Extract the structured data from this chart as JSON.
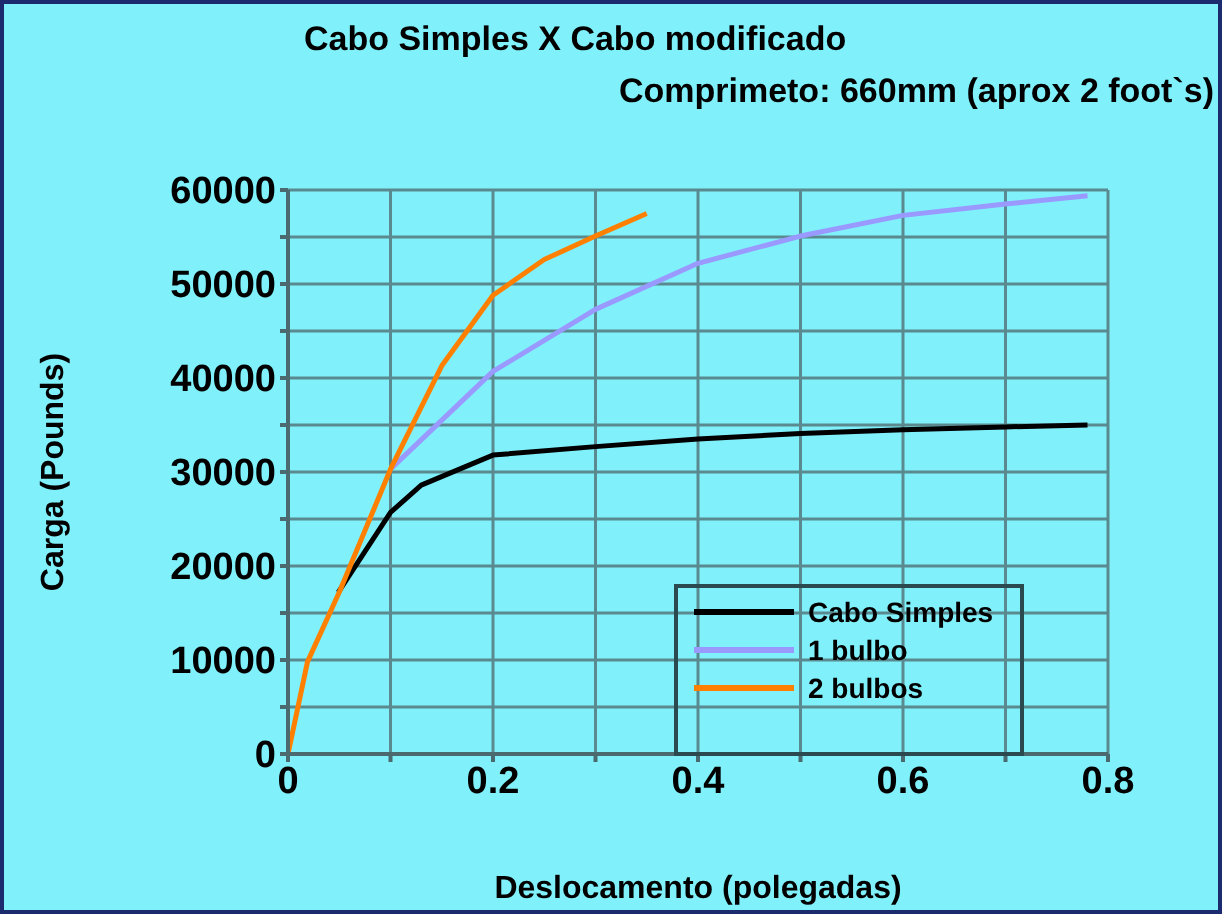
{
  "chart_data": {
    "type": "line",
    "title": "Cabo Simples X Cabo modificado",
    "subtitle": "Comprimeto: 660mm (aprox 2 foot`s)",
    "xlabel": "Deslocamento (polegadas)",
    "ylabel": "Carga (Pounds)",
    "xlim": [
      0,
      0.8
    ],
    "xticks": [
      0,
      {
        "value": 0.1,
        "label": null
      },
      0.2,
      {
        "value": 0.3,
        "label": null
      },
      0.4,
      {
        "value": 0.5,
        "label": null
      },
      0.6,
      {
        "value": 0.7,
        "label": null
      },
      0.8
    ],
    "ylim": [
      0,
      60000
    ],
    "yticks": [
      0,
      {
        "value": 5000,
        "label": null
      },
      10000,
      {
        "value": 15000,
        "label": null
      },
      20000,
      {
        "value": 25000,
        "label": null
      },
      30000,
      {
        "value": 35000,
        "label": null
      },
      40000,
      {
        "value": 45000,
        "label": null
      },
      50000,
      {
        "value": 55000,
        "label": null
      },
      60000
    ],
    "grid": true,
    "legend": "bottom right",
    "marker": "none",
    "line_style": "solid",
    "series": [
      {
        "name": "Cabo Simples",
        "color": "#000000",
        "x": [
          0.049,
          0.1,
          0.13,
          0.2,
          0.3,
          0.4,
          0.5,
          0.6,
          0.7,
          0.78
        ],
        "values": [
          17200,
          25700,
          28600,
          31800,
          32700,
          33500,
          34100,
          34500,
          34800,
          35000
        ]
      },
      {
        "name": "1 bulbo",
        "color": "#9999ff",
        "x": [
          0.1,
          0.2,
          0.3,
          0.4,
          0.5,
          0.6,
          0.7,
          0.78
        ],
        "values": [
          30300,
          40700,
          47300,
          52200,
          55100,
          57300,
          58500,
          59400
        ]
      },
      {
        "name": "2 bulbos",
        "color": "#ff8000",
        "x": [
          0,
          0.019,
          0.05,
          0.1,
          0.15,
          0.2,
          0.25,
          0.3,
          0.35
        ],
        "values": [
          0,
          9800,
          17200,
          30300,
          41300,
          48800,
          52600,
          55100,
          57500
        ]
      }
    ]
  }
}
